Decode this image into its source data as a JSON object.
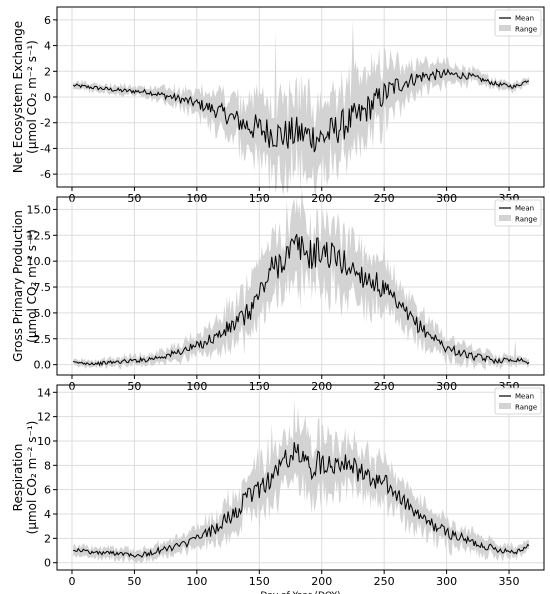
{
  "x_axis_label": "Day of Year (DOY)",
  "legend": {
    "mean": "Mean",
    "range": "Range"
  },
  "colors": {
    "mean_line": "#000000",
    "range_fill": "#d3d3d3",
    "grid": "#dddddd",
    "frame": "#000000"
  },
  "chart_data": [
    {
      "type": "line",
      "panel": "nee",
      "ylabel": "Net Ecosystem Exchange\n(μmol CO₂ m⁻² s⁻¹)",
      "xlabel": "",
      "xlim": [
        -12,
        378
      ],
      "ylim": [
        -7,
        7
      ],
      "yticks": [
        -6,
        -4,
        -2,
        0,
        2,
        4,
        6
      ],
      "xticks": [
        0,
        50,
        100,
        150,
        200,
        250,
        300,
        350
      ],
      "grid": true,
      "legend_position": "top-right",
      "mean_anchors": {
        "x": [
          1,
          20,
          40,
          60,
          80,
          100,
          120,
          140,
          160,
          170,
          180,
          190,
          200,
          210,
          220,
          230,
          240,
          250,
          260,
          270,
          280,
          290,
          300,
          320,
          340,
          355,
          365
        ],
        "y": [
          0.9,
          0.7,
          0.5,
          0.4,
          0.0,
          -0.5,
          -1.2,
          -2.2,
          -2.8,
          -3.0,
          -2.8,
          -3.0,
          -3.2,
          -2.6,
          -2.0,
          -1.5,
          -0.6,
          0.2,
          0.9,
          1.3,
          1.6,
          1.7,
          1.8,
          1.6,
          1.0,
          0.8,
          1.3
        ]
      },
      "range_halfwidth_anchors": {
        "x": [
          1,
          60,
          100,
          130,
          150,
          175,
          200,
          225,
          250,
          270,
          300,
          330,
          365
        ],
        "y": [
          0.3,
          0.4,
          0.9,
          1.8,
          2.6,
          3.0,
          2.8,
          2.8,
          2.2,
          1.3,
          0.8,
          0.4,
          0.3
        ]
      },
      "spikes": [
        {
          "x": 225,
          "hi": 6.1
        },
        {
          "x": 163,
          "hi": 5.2
        },
        {
          "x": 146,
          "lo": -5.8
        },
        {
          "x": 190,
          "lo": -6.3
        },
        {
          "x": 240,
          "hi": 3.5
        },
        {
          "x": 270,
          "hi": 2.9
        }
      ]
    },
    {
      "type": "line",
      "panel": "gpp",
      "ylabel": "Gross Primary Production\n(μmol CO₂ m⁻² s⁻¹)",
      "xlabel": "",
      "xlim": [
        -12,
        378
      ],
      "ylim": [
        -1,
        16.2
      ],
      "yticks": [
        0.0,
        2.5,
        5.0,
        7.5,
        10.0,
        12.5,
        15.0
      ],
      "xticks": [
        0,
        50,
        100,
        150,
        200,
        250,
        300,
        350
      ],
      "grid": true,
      "legend_position": "top-right",
      "mean_anchors": {
        "x": [
          1,
          20,
          40,
          60,
          80,
          100,
          120,
          140,
          150,
          160,
          170,
          180,
          190,
          200,
          210,
          220,
          230,
          240,
          250,
          260,
          270,
          280,
          290,
          300,
          320,
          340,
          360,
          366
        ],
        "y": [
          0.2,
          0.1,
          0.3,
          0.5,
          1.0,
          1.8,
          3.0,
          4.8,
          6.8,
          9.2,
          10.4,
          11.5,
          10.6,
          11.0,
          10.4,
          9.6,
          8.8,
          8.2,
          7.2,
          5.8,
          4.6,
          3.5,
          2.6,
          1.6,
          0.8,
          0.4,
          0.5,
          0.1
        ]
      },
      "range_halfwidth_anchors": {
        "x": [
          1,
          60,
          100,
          130,
          160,
          180,
          200,
          220,
          250,
          280,
          310,
          340,
          366
        ],
        "y": [
          0.3,
          0.5,
          1.0,
          2.0,
          3.2,
          3.5,
          3.3,
          3.0,
          2.4,
          1.5,
          0.9,
          0.6,
          0.3
        ]
      },
      "spikes": [
        {
          "x": 182,
          "hi": 15.7
        },
        {
          "x": 196,
          "hi": 15.2
        },
        {
          "x": 225,
          "hi": 13.2
        },
        {
          "x": 250,
          "hi": 12.0
        },
        {
          "x": 355,
          "hi": 2.4
        }
      ]
    },
    {
      "type": "line",
      "panel": "resp",
      "ylabel": "Respiration\n(μmol CO₂ m⁻² s⁻¹)",
      "xlabel": "Day of Year (DOY)",
      "xlim": [
        -12,
        378
      ],
      "ylim": [
        -0.6,
        14.6
      ],
      "yticks": [
        0,
        2,
        4,
        6,
        8,
        10,
        12,
        14
      ],
      "xticks": [
        0,
        50,
        100,
        150,
        200,
        250,
        300,
        350
      ],
      "grid": true,
      "legend_position": "top-right",
      "mean_anchors": {
        "x": [
          1,
          20,
          40,
          55,
          70,
          90,
          110,
          130,
          145,
          160,
          170,
          180,
          190,
          200,
          210,
          220,
          230,
          240,
          250,
          260,
          270,
          280,
          300,
          320,
          340,
          355,
          366
        ],
        "y": [
          1.1,
          0.8,
          0.8,
          0.6,
          1.0,
          1.5,
          2.5,
          4.0,
          5.8,
          7.0,
          8.4,
          9.1,
          7.8,
          8.3,
          8.2,
          8.5,
          7.4,
          6.8,
          6.6,
          5.6,
          4.6,
          3.6,
          2.5,
          1.7,
          1.1,
          0.9,
          1.4
        ]
      },
      "range_halfwidth_anchors": {
        "x": [
          1,
          60,
          100,
          130,
          160,
          180,
          200,
          220,
          250,
          280,
          310,
          340,
          366
        ],
        "y": [
          0.4,
          0.5,
          0.8,
          1.6,
          2.3,
          2.6,
          2.2,
          2.0,
          1.7,
          1.3,
          0.9,
          0.6,
          0.4
        ]
      },
      "spikes": [
        {
          "x": 178,
          "hi": 13.5
        },
        {
          "x": 160,
          "hi": 11.5
        },
        {
          "x": 205,
          "hi": 11.3
        },
        {
          "x": 226,
          "hi": 11.0
        },
        {
          "x": 150,
          "lo": 2.5
        }
      ]
    }
  ]
}
